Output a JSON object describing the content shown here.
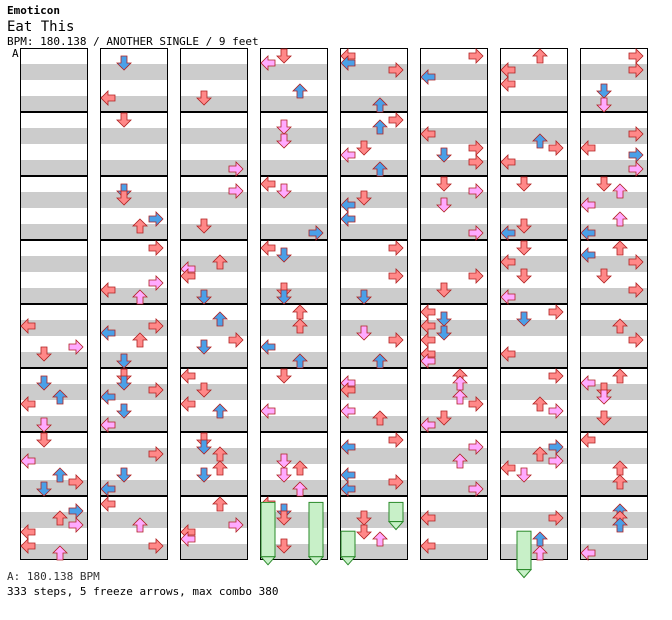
{
  "header": {
    "artist": "Emoticon",
    "title": "Eat This",
    "info": "BPM: 180.138 / ANOTHER SINGLE / 9 feet"
  },
  "chart": {
    "section_marker": "A",
    "columns": 8,
    "measures_per_column": 8,
    "arrow_colors": {
      "fourth": "#ff8888",
      "eighth": "#4aa0e8",
      "sixteenth": "#ffaaff",
      "freeze": "#c8f0c8"
    }
  },
  "footer": {
    "bpm_line": "A: 180.138 BPM",
    "summary": "333 steps, 5 freeze arrows, max combo 380"
  }
}
